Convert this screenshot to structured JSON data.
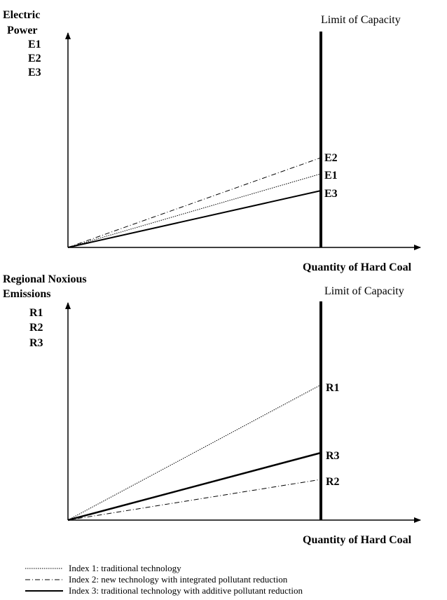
{
  "top_panel": {
    "y_title_line1": "Electric",
    "y_title_line2": "Power",
    "y_items": [
      "E1",
      "E2",
      "E3"
    ],
    "capacity_label": "Limit of Capacity",
    "x_title": "Quantity of Hard Coal",
    "end_labels": [
      "E2",
      "E1",
      "E3"
    ]
  },
  "bottom_panel": {
    "y_title_line1": "Regional Noxious",
    "y_title_line2": "Emissions",
    "y_items": [
      "R1",
      "R2",
      "R3"
    ],
    "capacity_label": "Limit of Capacity",
    "x_title": "Quantity of Hard Coal",
    "end_labels": [
      "R1",
      "R3",
      "R2"
    ]
  },
  "legend": [
    {
      "label": "Index 1: traditional technology",
      "style": "dotted"
    },
    {
      "label": "Index 2: new technology with integrated pollutant reduction",
      "style": "dash-dot"
    },
    {
      "label": "Index 3: traditional technology with additive pollutant reduction",
      "style": "solid"
    }
  ]
}
